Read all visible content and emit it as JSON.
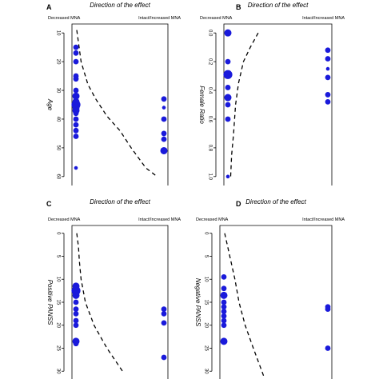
{
  "chart_data": [
    {
      "type": "scatter",
      "panel_label": "A",
      "title": "Direction of the effect",
      "x_categories": [
        "Decreased MNA",
        "Intact/Increased MNA"
      ],
      "ylabel": "Age",
      "yticks": [
        10,
        20,
        30,
        40,
        50,
        60
      ],
      "ylim": [
        8,
        62
      ],
      "points": [
        {
          "group": 0,
          "y": 15,
          "size": 2
        },
        {
          "group": 0,
          "y": 17,
          "size": 2
        },
        {
          "group": 0,
          "y": 20,
          "size": 2
        },
        {
          "group": 0,
          "y": 25,
          "size": 2
        },
        {
          "group": 0,
          "y": 26,
          "size": 2
        },
        {
          "group": 0,
          "y": 30,
          "size": 2
        },
        {
          "group": 0,
          "y": 32,
          "size": 3
        },
        {
          "group": 0,
          "y": 34,
          "size": 3
        },
        {
          "group": 0,
          "y": 35,
          "size": 4
        },
        {
          "group": 0,
          "y": 36,
          "size": 3
        },
        {
          "group": 0,
          "y": 37,
          "size": 3
        },
        {
          "group": 0,
          "y": 38,
          "size": 2
        },
        {
          "group": 0,
          "y": 40,
          "size": 2
        },
        {
          "group": 0,
          "y": 42,
          "size": 2
        },
        {
          "group": 0,
          "y": 44,
          "size": 2
        },
        {
          "group": 0,
          "y": 46,
          "size": 2
        },
        {
          "group": 0,
          "y": 57,
          "size": 1
        },
        {
          "group": 1,
          "y": 33,
          "size": 2
        },
        {
          "group": 1,
          "y": 36,
          "size": 1
        },
        {
          "group": 1,
          "y": 40,
          "size": 2
        },
        {
          "group": 1,
          "y": 45,
          "size": 2
        },
        {
          "group": 1,
          "y": 47,
          "size": 2
        },
        {
          "group": 1,
          "y": 51,
          "size": 3
        }
      ],
      "curve": [
        [
          0.0,
          9
        ],
        [
          0.05,
          20
        ],
        [
          0.13,
          28
        ],
        [
          0.22,
          33
        ],
        [
          0.35,
          39
        ],
        [
          0.5,
          44
        ],
        [
          0.63,
          50
        ],
        [
          0.8,
          57
        ],
        [
          0.93,
          60
        ]
      ]
    },
    {
      "type": "scatter",
      "panel_label": "B",
      "title": "Direction of the effect",
      "x_categories": [
        "Decreased MNA",
        "Intact/Increased MNA"
      ],
      "ylabel": "Female Ratio",
      "yticks": [
        "0.0",
        "0.2",
        "0.4",
        "0.6",
        "0.8",
        "1.0"
      ],
      "ylim": [
        -0.04,
        1.04
      ],
      "points": [
        {
          "group": 0,
          "y": 0.0,
          "size": 3
        },
        {
          "group": 0,
          "y": 0.2,
          "size": 2
        },
        {
          "group": 0,
          "y": 0.29,
          "size": 4
        },
        {
          "group": 0,
          "y": 0.38,
          "size": 2
        },
        {
          "group": 0,
          "y": 0.45,
          "size": 3
        },
        {
          "group": 0,
          "y": 0.5,
          "size": 2
        },
        {
          "group": 0,
          "y": 0.6,
          "size": 2
        },
        {
          "group": 0,
          "y": 1.0,
          "size": 1
        },
        {
          "group": 1,
          "y": 0.12,
          "size": 2
        },
        {
          "group": 1,
          "y": 0.18,
          "size": 2
        },
        {
          "group": 1,
          "y": 0.25,
          "size": 1
        },
        {
          "group": 1,
          "y": 0.31,
          "size": 2
        },
        {
          "group": 1,
          "y": 0.43,
          "size": 2
        },
        {
          "group": 1,
          "y": 0.48,
          "size": 2
        }
      ],
      "curve": [
        [
          0.3,
          0.0
        ],
        [
          0.22,
          0.1
        ],
        [
          0.15,
          0.2
        ],
        [
          0.1,
          0.35
        ],
        [
          0.07,
          0.5
        ],
        [
          0.05,
          0.7
        ],
        [
          0.03,
          0.85
        ],
        [
          0.02,
          1.0
        ]
      ]
    },
    {
      "type": "scatter",
      "panel_label": "C",
      "title": "Direction of the effect",
      "x_categories": [
        "Decreased MNA",
        "Intact/Increased MNA"
      ],
      "ylabel": "Positive PANSS",
      "yticks": [
        0,
        5,
        10,
        15,
        20,
        25,
        30
      ],
      "ylim": [
        -1,
        31
      ],
      "points": [
        {
          "group": 0,
          "y": 11.5,
          "size": 3
        },
        {
          "group": 0,
          "y": 12.5,
          "size": 4
        },
        {
          "group": 0,
          "y": 13.5,
          "size": 3
        },
        {
          "group": 0,
          "y": 15,
          "size": 2
        },
        {
          "group": 0,
          "y": 16.5,
          "size": 2
        },
        {
          "group": 0,
          "y": 17.5,
          "size": 2
        },
        {
          "group": 0,
          "y": 19,
          "size": 2
        },
        {
          "group": 0,
          "y": 20,
          "size": 2
        },
        {
          "group": 0,
          "y": 23.5,
          "size": 3
        },
        {
          "group": 0,
          "y": 24,
          "size": 2
        },
        {
          "group": 1,
          "y": 16.5,
          "size": 2
        },
        {
          "group": 1,
          "y": 17.5,
          "size": 2
        },
        {
          "group": 1,
          "y": 19.5,
          "size": 2
        },
        {
          "group": 1,
          "y": 27,
          "size": 2
        }
      ],
      "curve": [
        [
          0.0,
          0.0
        ],
        [
          0.02,
          3
        ],
        [
          0.03,
          6
        ],
        [
          0.05,
          10
        ],
        [
          0.1,
          15
        ],
        [
          0.2,
          20
        ],
        [
          0.35,
          25
        ],
        [
          0.53,
          30
        ]
      ]
    },
    {
      "type": "scatter",
      "panel_label": "D",
      "title": "Direction of the effect",
      "x_categories": [
        "Decreased MNA",
        "Intact/Increased MNA"
      ],
      "ylabel": "Negative PANSS",
      "yticks": [
        0,
        5,
        10,
        15,
        20,
        25,
        30
      ],
      "ylim": [
        -1,
        31
      ],
      "points": [
        {
          "group": 0,
          "y": 9.5,
          "size": 2
        },
        {
          "group": 0,
          "y": 12,
          "size": 2
        },
        {
          "group": 0,
          "y": 13.5,
          "size": 3
        },
        {
          "group": 0,
          "y": 15,
          "size": 2
        },
        {
          "group": 0,
          "y": 16,
          "size": 2
        },
        {
          "group": 0,
          "y": 17,
          "size": 2
        },
        {
          "group": 0,
          "y": 18,
          "size": 2
        },
        {
          "group": 0,
          "y": 19,
          "size": 2
        },
        {
          "group": 0,
          "y": 20,
          "size": 2
        },
        {
          "group": 0,
          "y": 23.5,
          "size": 3
        },
        {
          "group": 1,
          "y": 16,
          "size": 2
        },
        {
          "group": 1,
          "y": 16.5,
          "size": 2
        },
        {
          "group": 1,
          "y": 25,
          "size": 2
        }
      ],
      "curve": [
        [
          0.0,
          0.0
        ],
        [
          0.03,
          3
        ],
        [
          0.06,
          6
        ],
        [
          0.1,
          10
        ],
        [
          0.14,
          15
        ],
        [
          0.2,
          20
        ],
        [
          0.28,
          25
        ],
        [
          0.38,
          31
        ]
      ]
    }
  ],
  "colors": {
    "points": "#1a1adb",
    "curve": "#000000",
    "frame": "#000000"
  }
}
